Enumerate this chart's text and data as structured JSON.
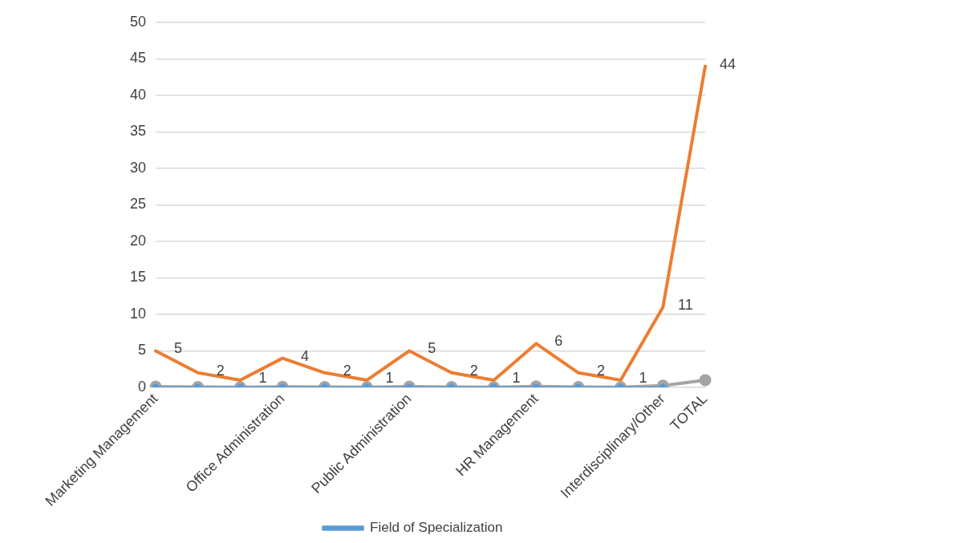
{
  "chart_data": {
    "type": "line",
    "categories": [
      "Marketing Management",
      null,
      null,
      "Office Administration",
      null,
      null,
      "Public Administration",
      null,
      null,
      "HR Management",
      null,
      null,
      "Interdisciplinary/Other",
      "TOTAL"
    ],
    "series": [
      {
        "name": "Field of Specialization",
        "color": "#5b9bd5",
        "marker": "circle",
        "values": [
          0,
          0,
          0,
          0,
          0,
          0,
          0,
          0,
          0,
          0,
          0,
          0,
          0,
          null
        ]
      },
      {
        "color": "#ed7d31",
        "marker": "none",
        "values": [
          5,
          2,
          1,
          4,
          2,
          1,
          5,
          2,
          1,
          6,
          2,
          1,
          11,
          44
        ],
        "value_labels": [
          "5",
          "2",
          "1",
          "4",
          "2",
          "1",
          "5",
          "2",
          "1",
          "6",
          "2",
          "1",
          "11",
          "44"
        ]
      },
      {
        "color": "#a5a5a5",
        "marker": "circle",
        "values": [
          0.1,
          0.05,
          0.02,
          0.09,
          0.05,
          0.02,
          0.1,
          0.05,
          0.02,
          0.14,
          0.05,
          0.02,
          0.25,
          1
        ]
      }
    ],
    "ylim": [
      0,
      50
    ],
    "yticks": [
      0,
      5,
      10,
      15,
      20,
      25,
      30,
      35,
      40,
      45,
      50
    ],
    "grid": "y",
    "legend": "bottom"
  }
}
